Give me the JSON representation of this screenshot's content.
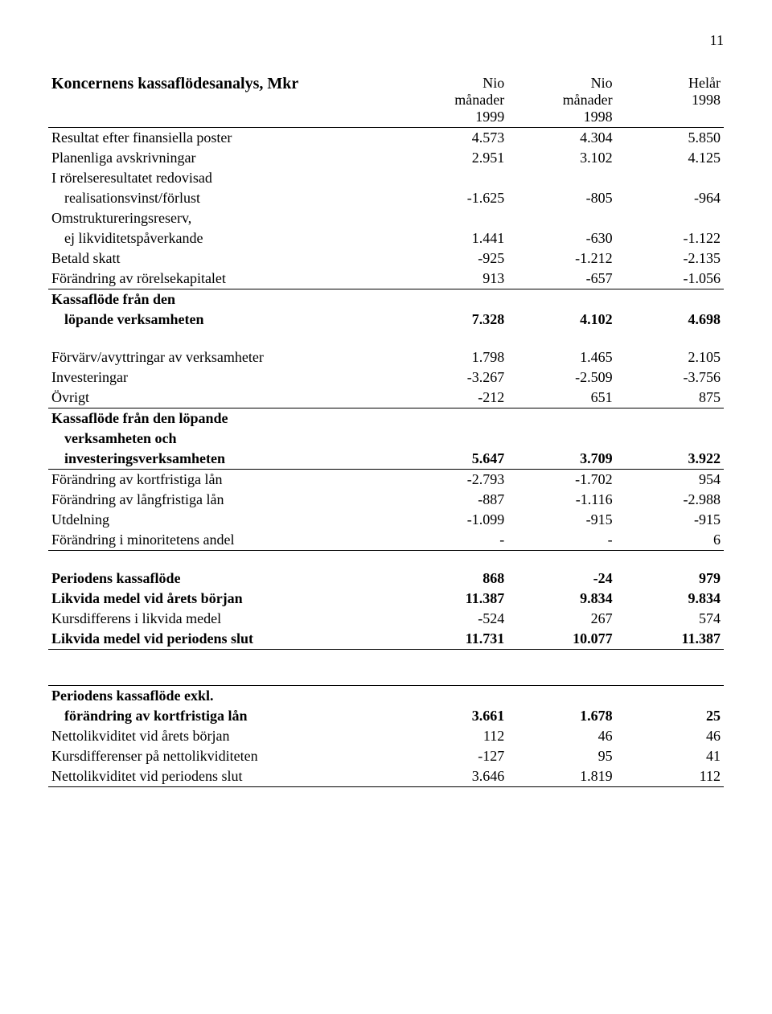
{
  "page_number": "11",
  "title": "Koncernens kassaflödesanalys, Mkr",
  "headers": {
    "c1": "Nio\nmånader\n1999",
    "c2": "Nio\nmånader\n1998",
    "c3": "Helår\n1998"
  },
  "section1": [
    {
      "label": "Resultat efter finansiella poster",
      "v": [
        "4.573",
        "4.304",
        "5.850"
      ],
      "bold": false
    },
    {
      "label": "Planenliga avskrivningar",
      "v": [
        "2.951",
        "3.102",
        "4.125"
      ],
      "bold": false
    },
    {
      "label": "I rörelseresultatet redovisad",
      "v": [
        "",
        "",
        ""
      ],
      "bold": false,
      "noValues": true
    },
    {
      "label": "realisationsvinst/förlust",
      "indent": true,
      "v": [
        "-1.625",
        "-805",
        "-964"
      ],
      "bold": false
    },
    {
      "label": "Omstruktureringsreserv,",
      "v": [
        "",
        "",
        ""
      ],
      "bold": false,
      "noValues": true
    },
    {
      "label": "ej likviditetspåverkande",
      "indent": true,
      "v": [
        "1.441",
        "-630",
        "-1.122"
      ],
      "bold": false
    },
    {
      "label": "Betald skatt",
      "v": [
        "-925",
        "-1.212",
        "-2.135"
      ],
      "bold": false
    },
    {
      "label": "Förändring av rörelsekapitalet",
      "v": [
        "913",
        "-657",
        "-1.056"
      ],
      "bold": false
    }
  ],
  "section1_total": {
    "label1": "Kassaflöde från den",
    "label2": "löpande verksamheten",
    "v": [
      "7.328",
      "4.102",
      "4.698"
    ]
  },
  "section2": [
    {
      "label": "Förvärv/avyttringar av verksamheter",
      "v": [
        "1.798",
        "1.465",
        "2.105"
      ],
      "bold": false
    },
    {
      "label": "Investeringar",
      "v": [
        "-3.267",
        "-2.509",
        "-3.756"
      ],
      "bold": false
    },
    {
      "label": "Övrigt",
      "v": [
        "-212",
        "651",
        "875"
      ],
      "bold": false
    }
  ],
  "section2_total": {
    "label1": "Kassaflöde från den löpande",
    "label2": "verksamheten och",
    "label3": "investeringsverksamheten",
    "v": [
      "5.647",
      "3.709",
      "3.922"
    ]
  },
  "section3": [
    {
      "label": "Förändring av kortfristiga lån",
      "v": [
        "-2.793",
        "-1.702",
        "954"
      ],
      "bold": false
    },
    {
      "label": "Förändring av långfristiga lån",
      "v": [
        "-887",
        "-1.116",
        "-2.988"
      ],
      "bold": false
    },
    {
      "label": "Utdelning",
      "v": [
        "-1.099",
        "-915",
        "-915"
      ],
      "bold": false
    },
    {
      "label": "Förändring i minoritetens andel",
      "v": [
        "-",
        "-",
        "6"
      ],
      "bold": false
    }
  ],
  "section4": [
    {
      "label": "Periodens kassaflöde",
      "v": [
        "868",
        "-24",
        "979"
      ],
      "bold": true
    },
    {
      "label": "Likvida medel vid årets början",
      "v": [
        "11.387",
        "9.834",
        "9.834"
      ],
      "bold": true
    },
    {
      "label": "Kursdifferens i likvida medel",
      "v": [
        "-524",
        "267",
        "574"
      ],
      "bold": false
    },
    {
      "label": "Likvida medel vid periodens slut",
      "v": [
        "11.731",
        "10.077",
        "11.387"
      ],
      "bold": true
    }
  ],
  "section5_head": {
    "label1": "Periodens kassaflöde exkl.",
    "label2": "förändring av kortfristiga lån",
    "v": [
      "3.661",
      "1.678",
      "25"
    ]
  },
  "section5": [
    {
      "label": "Nettolikviditet vid årets början",
      "v": [
        "112",
        "46",
        "46"
      ],
      "bold": false
    },
    {
      "label": "Kursdifferenser på nettolikviditeten",
      "v": [
        "-127",
        "95",
        "41"
      ],
      "bold": false
    },
    {
      "label": "Nettolikviditet vid periodens slut",
      "v": [
        "3.646",
        "1.819",
        "112"
      ],
      "bold": false
    }
  ]
}
